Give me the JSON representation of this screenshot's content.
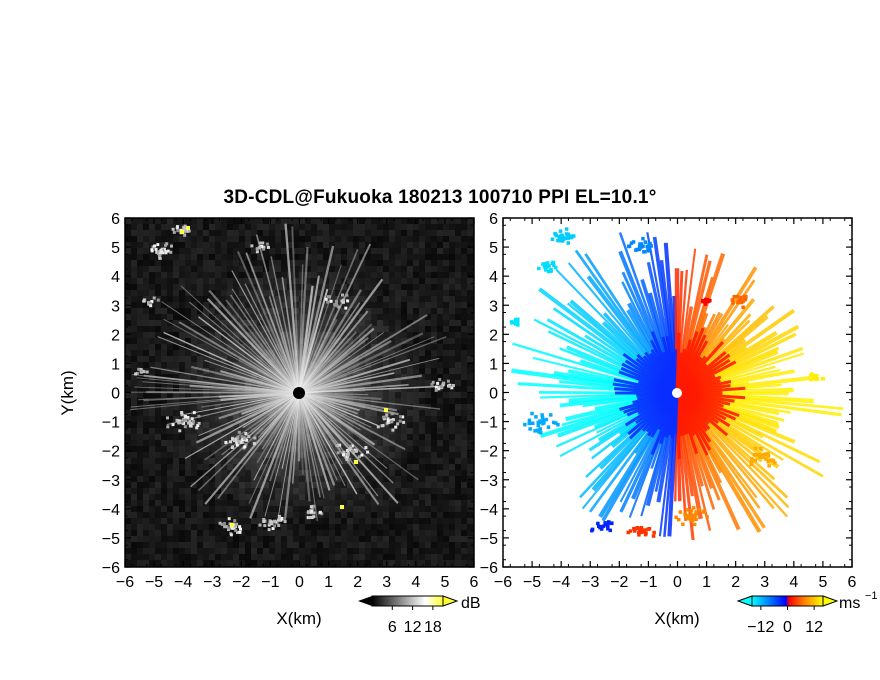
{
  "title": "3D-CDL@Fukuoka 180213 100710 PPI EL=10.1°",
  "chart_data": [
    {
      "type": "heatmap",
      "panel": "reflectivity",
      "xlabel": "X(km)",
      "ylabel": "Y(km)",
      "xlim": [
        -6,
        6
      ],
      "ylim": [
        -6,
        6
      ],
      "xticks": [
        "−6",
        "−5",
        "−4",
        "−3",
        "−2",
        "−1",
        "0",
        "1",
        "2",
        "3",
        "4",
        "5",
        "6"
      ],
      "yticks": [
        "6",
        "5",
        "4",
        "3",
        "2",
        "1",
        "0",
        "−1",
        "−2",
        "−3",
        "−4",
        "−5",
        "−6"
      ],
      "colorbar": {
        "unit": "dB",
        "ticks": [
          "6",
          "12",
          "18"
        ],
        "range": [
          0,
          21
        ],
        "colors": [
          "#000000",
          "#ffffff",
          "#ffff33"
        ]
      },
      "background_color": "#161616",
      "description_values": {
        "center_x": 0,
        "center_y": 0
      }
    },
    {
      "type": "heatmap",
      "panel": "doppler_velocity",
      "xlabel": "X(km)",
      "ylabel": "",
      "xlim": [
        -6,
        6
      ],
      "ylim": [
        -6,
        6
      ],
      "xticks": [
        "−6",
        "−5",
        "−4",
        "−3",
        "−2",
        "−1",
        "0",
        "1",
        "2",
        "3",
        "4",
        "5",
        "6"
      ],
      "yticks": [
        "6",
        "5",
        "4",
        "3",
        "2",
        "1",
        "0",
        "−1",
        "−2",
        "−3",
        "−4",
        "−5",
        "−6"
      ],
      "colorbar": {
        "unit": "ms",
        "unit_exp": "−1",
        "ticks": [
          "−12",
          "0",
          "12"
        ],
        "range": [
          -16,
          16
        ],
        "colors": [
          "#00ffff",
          "#0000ff",
          "#ff0000",
          "#ffff00"
        ]
      }
    }
  ]
}
